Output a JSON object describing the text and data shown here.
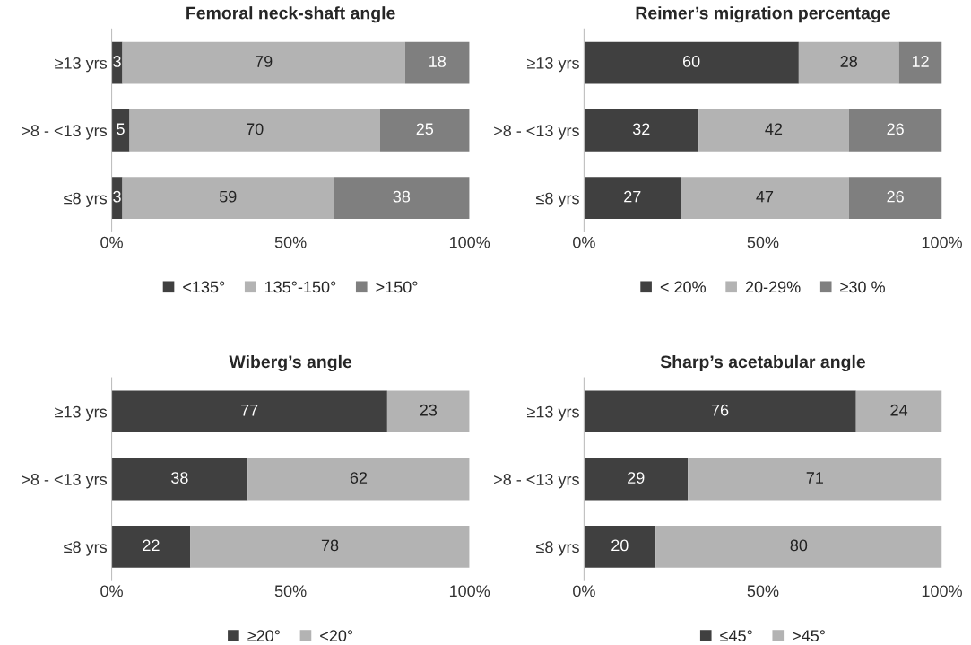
{
  "chart_data": [
    {
      "type": "bar",
      "orientation": "horizontal",
      "stacked": true,
      "title": "Femoral neck-shaft angle",
      "categories": [
        "≥13 yrs",
        ">8 - <13 yrs",
        "≤8 yrs"
      ],
      "series": [
        {
          "name": "<135°",
          "color": "#404040",
          "values": [
            3,
            5,
            3
          ]
        },
        {
          "name": "135°-150°",
          "color": "#b3b3b3",
          "values": [
            79,
            70,
            59
          ]
        },
        {
          "name": ">150°",
          "color": "#7f7f7f",
          "values": [
            18,
            25,
            38
          ]
        }
      ],
      "xlim": [
        0,
        100
      ],
      "xticks": [
        {
          "value": 0,
          "label": "0%"
        },
        {
          "value": 50,
          "label": "50%"
        },
        {
          "value": 100,
          "label": "100%"
        }
      ],
      "data_labels": true,
      "legend": "bottom",
      "grid": false
    },
    {
      "type": "bar",
      "orientation": "horizontal",
      "stacked": true,
      "title": "Reimer’s migration percentage",
      "categories": [
        "≥13 yrs",
        ">8 - <13 yrs",
        "≤8 yrs"
      ],
      "series": [
        {
          "name": "< 20%",
          "color": "#404040",
          "values": [
            60,
            32,
            27
          ]
        },
        {
          "name": "20-29%",
          "color": "#b3b3b3",
          "values": [
            28,
            42,
            47
          ]
        },
        {
          "name": "≥30 %",
          "color": "#7f7f7f",
          "values": [
            12,
            26,
            26
          ]
        }
      ],
      "xlim": [
        0,
        100
      ],
      "xticks": [
        {
          "value": 0,
          "label": "0%"
        },
        {
          "value": 50,
          "label": "50%"
        },
        {
          "value": 100,
          "label": "100%"
        }
      ],
      "data_labels": true,
      "legend": "bottom",
      "grid": false
    },
    {
      "type": "bar",
      "orientation": "horizontal",
      "stacked": true,
      "title": "Wiberg’s angle",
      "categories": [
        "≥13 yrs",
        ">8 - <13 yrs",
        "≤8 yrs"
      ],
      "series": [
        {
          "name": "≥20°",
          "color": "#404040",
          "values": [
            77,
            38,
            22
          ]
        },
        {
          "name": "<20°",
          "color": "#b3b3b3",
          "values": [
            23,
            62,
            78
          ]
        }
      ],
      "xlim": [
        0,
        100
      ],
      "xticks": [
        {
          "value": 0,
          "label": "0%"
        },
        {
          "value": 50,
          "label": "50%"
        },
        {
          "value": 100,
          "label": "100%"
        }
      ],
      "data_labels": true,
      "legend": "bottom",
      "grid": false
    },
    {
      "type": "bar",
      "orientation": "horizontal",
      "stacked": true,
      "title": "Sharp’s acetabular angle",
      "categories": [
        "≥13 yrs",
        ">8 - <13 yrs",
        "≤8 yrs"
      ],
      "series": [
        {
          "name": "≤45°",
          "color": "#404040",
          "values": [
            76,
            29,
            20
          ]
        },
        {
          "name": ">45°",
          "color": "#b3b3b3",
          "values": [
            24,
            71,
            80
          ]
        }
      ],
      "xlim": [
        0,
        100
      ],
      "xticks": [
        {
          "value": 0,
          "label": "0%"
        },
        {
          "value": 50,
          "label": "50%"
        },
        {
          "value": 100,
          "label": "100%"
        }
      ],
      "data_labels": true,
      "legend": "bottom",
      "grid": false
    }
  ]
}
